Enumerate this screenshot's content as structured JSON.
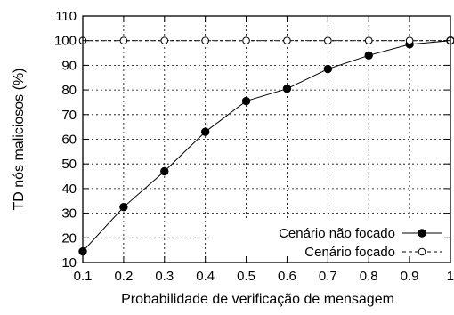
{
  "chart_data": {
    "type": "line",
    "title": "",
    "xlabel": "Probabilidade de verificação de mensagem",
    "ylabel": "TD nós maliciosos (%)",
    "x": [
      0.1,
      0.2,
      0.3,
      0.4,
      0.5,
      0.6,
      0.7,
      0.8,
      0.9,
      1.0
    ],
    "x_tick_labels": [
      "0.1",
      "0.2",
      "0.3",
      "0.4",
      "0.5",
      "0.6",
      "0.7",
      "0.8",
      "0.9",
      "1"
    ],
    "y_tick_labels": [
      "10",
      "20",
      "30",
      "40",
      "50",
      "60",
      "70",
      "80",
      "90",
      "100",
      "110"
    ],
    "xlim": [
      0.1,
      1.0
    ],
    "ylim": [
      10,
      110
    ],
    "grid": true,
    "legend_position": "bottom-right",
    "series": [
      {
        "name": "Cenário não focado",
        "marker": "filled-circle",
        "line_style": "solid",
        "color": "#000000",
        "values": [
          14.5,
          32.5,
          47,
          63,
          75.5,
          80.5,
          88.5,
          94,
          98.5,
          100
        ]
      },
      {
        "name": "Cenário focado",
        "marker": "open-circle",
        "line_style": "dashed",
        "color": "#000000",
        "values": [
          100,
          100,
          100,
          100,
          100,
          100,
          100,
          100,
          100,
          100
        ]
      }
    ]
  }
}
